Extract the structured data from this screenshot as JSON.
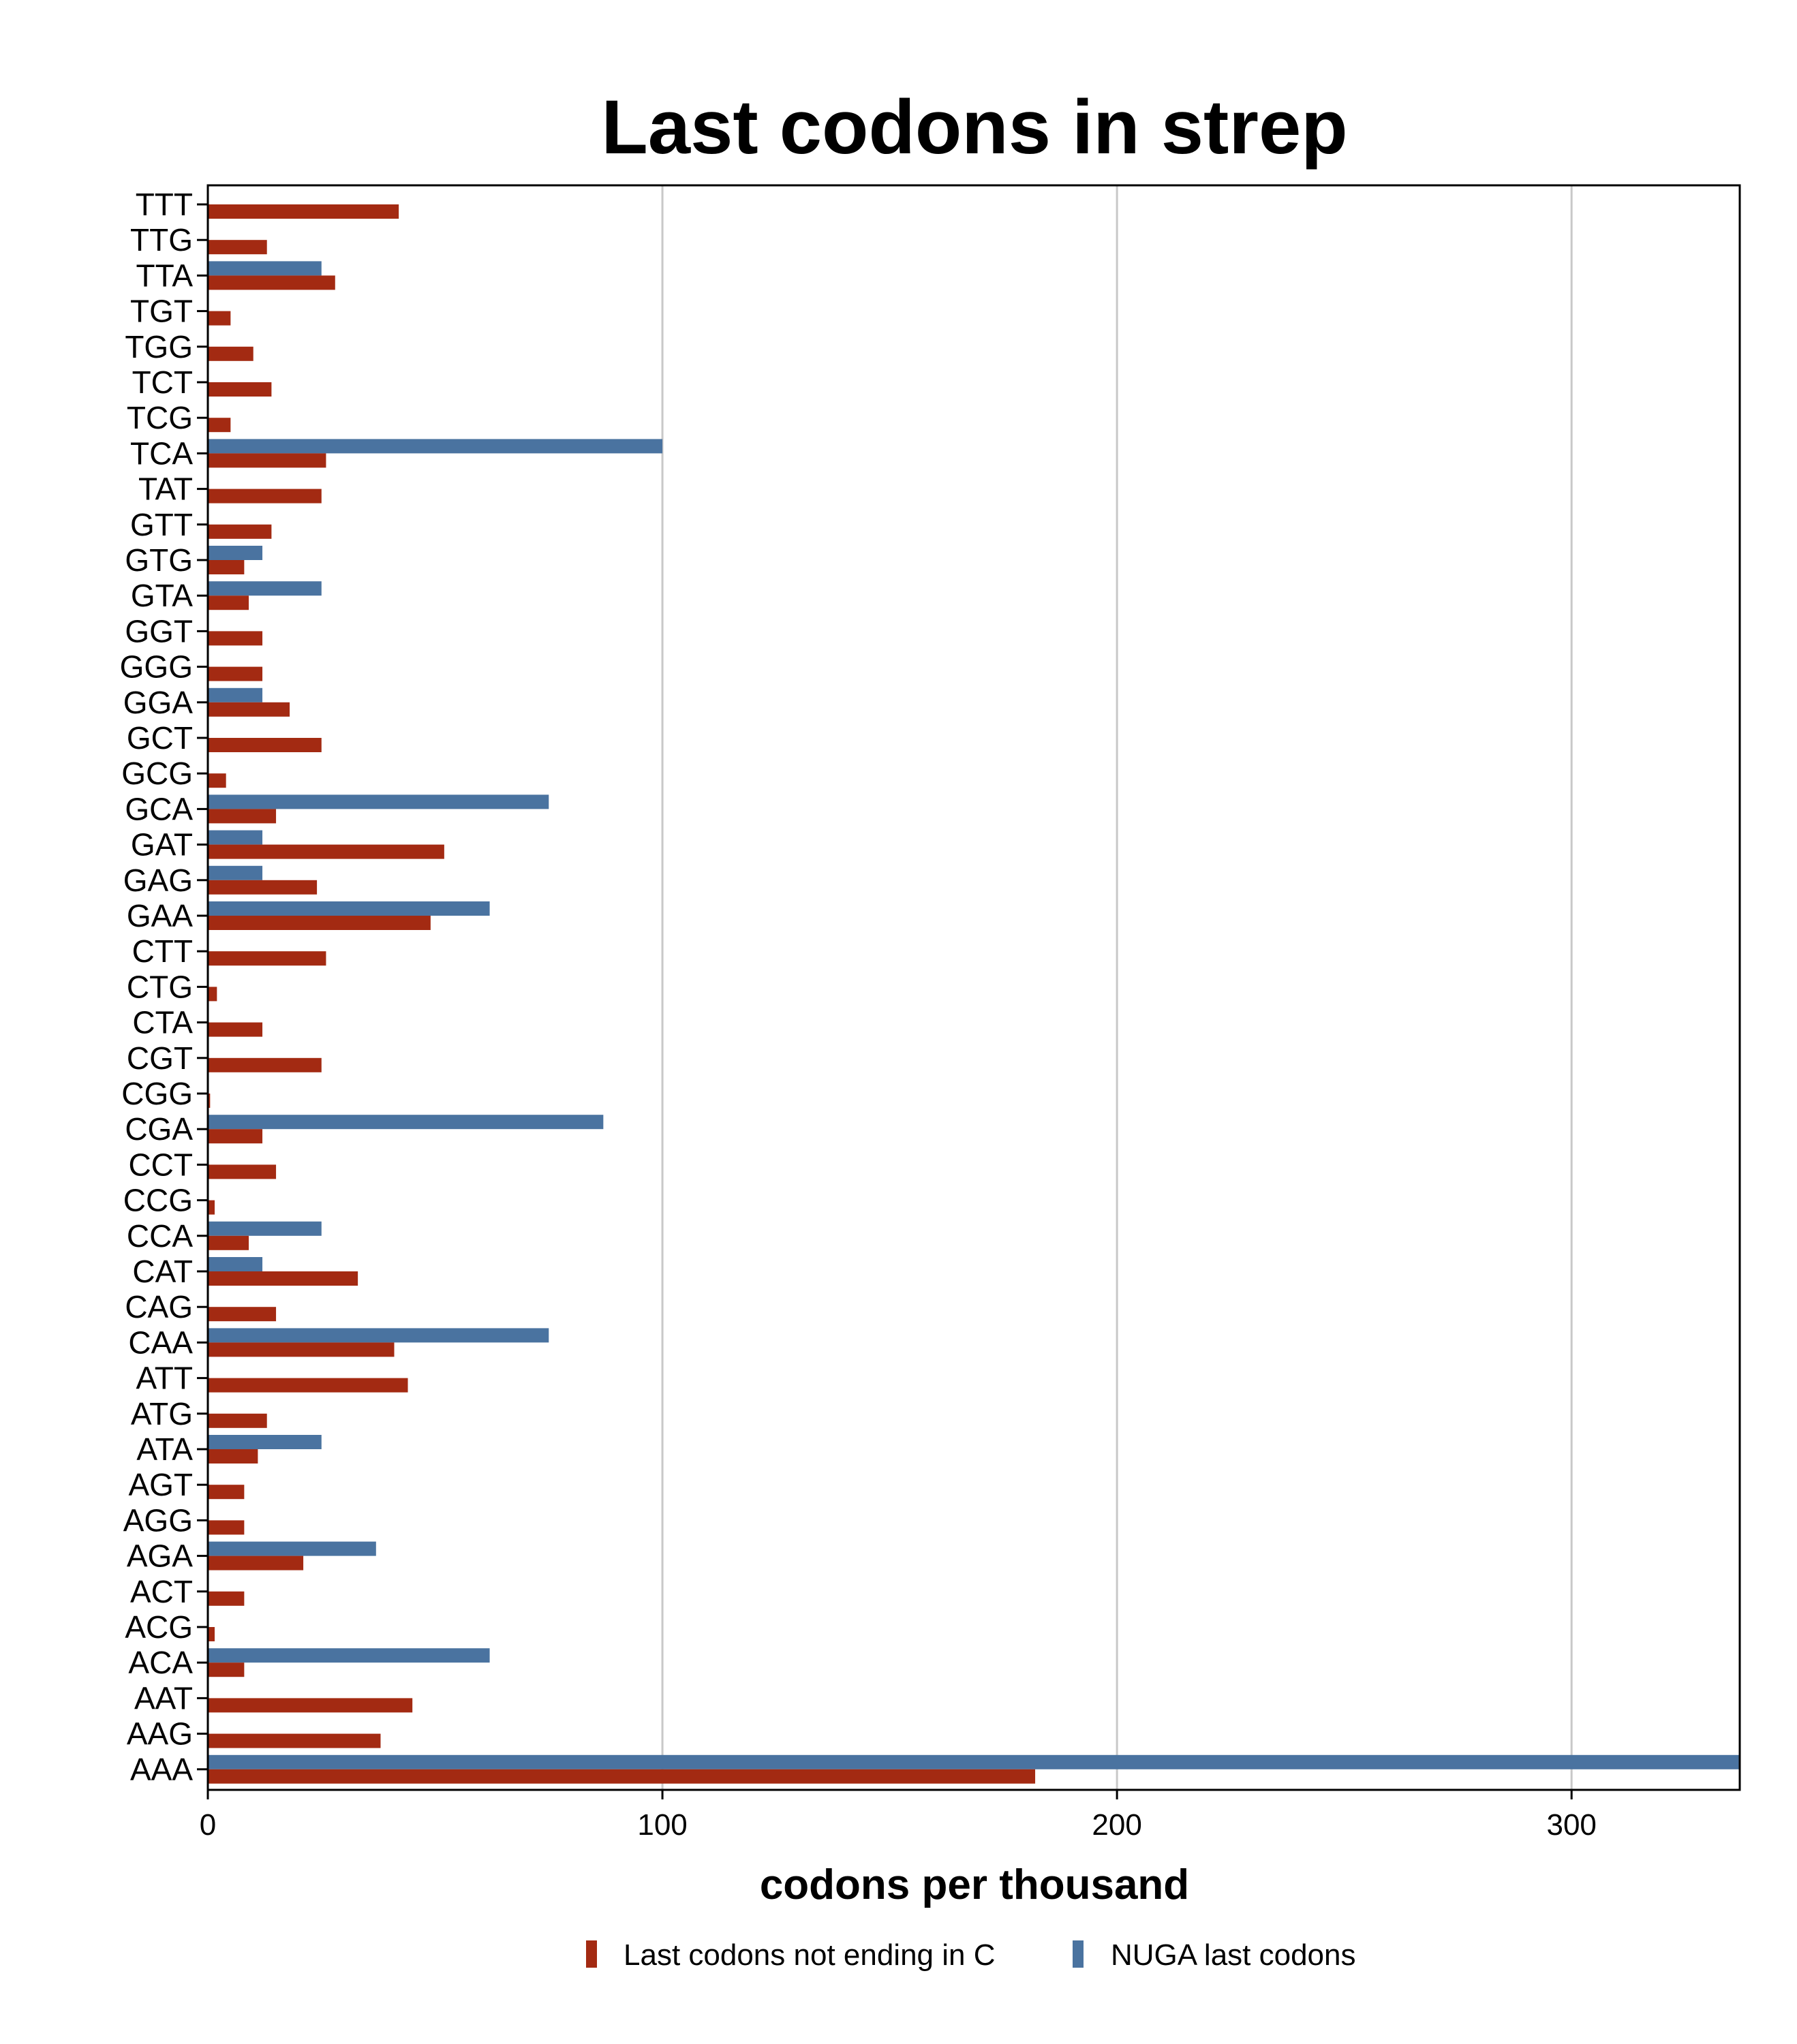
{
  "chart_data": {
    "type": "bar",
    "orientation": "horizontal",
    "title": "Last codons in strep",
    "xlabel": "codons per thousand",
    "ylabel": "",
    "xlim": [
      0,
      337
    ],
    "xticks": [
      0,
      100,
      200,
      300
    ],
    "grid": "vertical",
    "legend": "bottom",
    "categories": [
      "TTT",
      "TTG",
      "TTA",
      "TGT",
      "TGG",
      "TCT",
      "TCG",
      "TCA",
      "TAT",
      "GTT",
      "GTG",
      "GTA",
      "GGT",
      "GGG",
      "GGA",
      "GCT",
      "GCG",
      "GCA",
      "GAT",
      "GAG",
      "GAA",
      "CTT",
      "CTG",
      "CTA",
      "CGT",
      "CGG",
      "CGA",
      "CCT",
      "CCG",
      "CCA",
      "CAT",
      "CAG",
      "CAA",
      "ATT",
      "ATG",
      "ATA",
      "AGT",
      "AGG",
      "AGA",
      "ACT",
      "ACG",
      "ACA",
      "AAT",
      "AAG",
      "AAA"
    ],
    "series": [
      {
        "name": "Last codons not ending in C",
        "color": "#a32a12",
        "values": [
          42,
          13,
          28,
          5,
          10,
          14,
          5,
          26,
          25,
          14,
          8,
          9,
          12,
          12,
          18,
          25,
          4,
          15,
          52,
          24,
          49,
          26,
          2,
          12,
          25,
          0.5,
          12,
          15,
          1.5,
          9,
          33,
          15,
          41,
          44,
          13,
          11,
          8,
          8,
          21,
          8,
          1.5,
          8,
          45,
          38,
          182
        ]
      },
      {
        "name": "NUGA last codons",
        "color": "#4a73a0",
        "values": [
          0,
          0,
          25,
          0,
          0,
          0,
          0,
          100,
          0,
          0,
          12,
          25,
          0,
          0,
          12,
          0,
          0,
          75,
          12,
          12,
          62,
          0,
          0,
          0,
          0,
          0,
          87,
          0,
          0,
          25,
          12,
          0,
          75,
          0,
          0,
          25,
          0,
          0,
          37,
          0,
          0,
          62,
          0,
          0,
          337
        ]
      }
    ]
  }
}
